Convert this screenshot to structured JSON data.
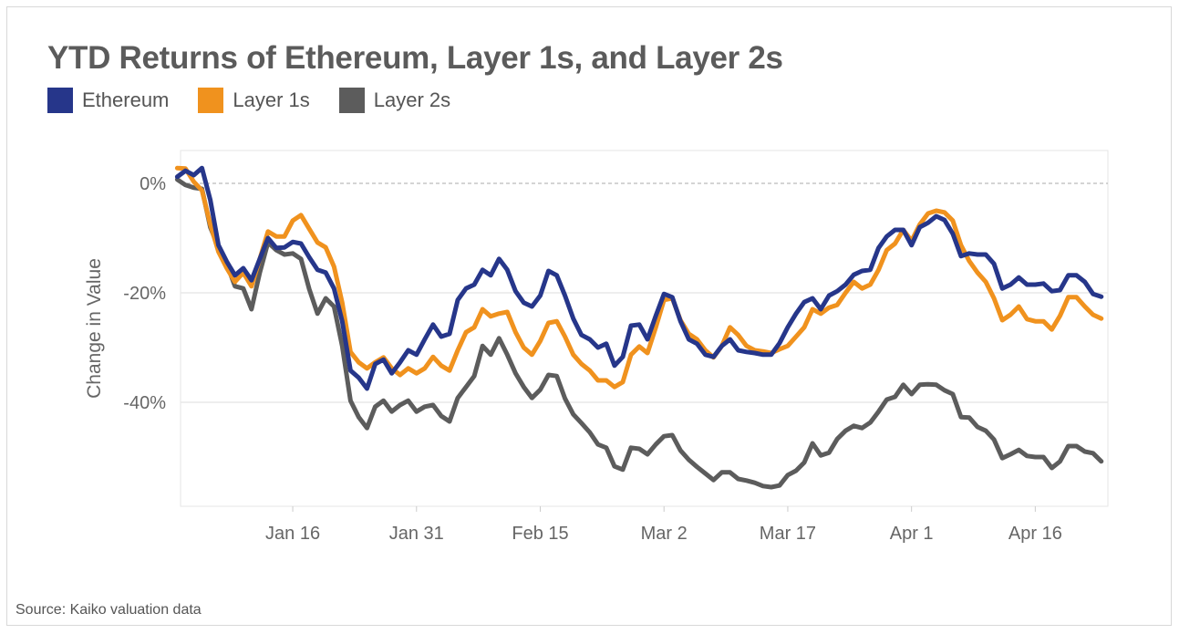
{
  "chart_data": {
    "type": "line",
    "title": "YTD Returns of Ethereum, Layer 1s, and Layer 2s",
    "ylabel": "Change in Value",
    "xlabel": "",
    "source": "Source: Kaiko valuation data",
    "ylim": [
      -59,
      6
    ],
    "xlim": [
      "Jan 1",
      "Apr 25"
    ],
    "grid": true,
    "legend_placement": "top-left",
    "y_ticks": [
      {
        "value": 0,
        "label": "0%"
      },
      {
        "value": -20,
        "label": "-20%"
      },
      {
        "value": -40,
        "label": "-40%"
      }
    ],
    "x_ticks": [
      "Jan 16",
      "Jan 31",
      "Feb 15",
      "Mar 2",
      "Mar 17",
      "Apr 1",
      "Apr 16"
    ],
    "x": [
      "Jan 2",
      "Jan 3",
      "Jan 4",
      "Jan 5",
      "Jan 6",
      "Jan 7",
      "Jan 8",
      "Jan 9",
      "Jan 10",
      "Jan 11",
      "Jan 12",
      "Jan 13",
      "Jan 14",
      "Jan 15",
      "Jan 16",
      "Jan 17",
      "Jan 18",
      "Jan 19",
      "Jan 20",
      "Jan 21",
      "Jan 22",
      "Jan 23",
      "Jan 24",
      "Jan 25",
      "Jan 26",
      "Jan 27",
      "Jan 28",
      "Jan 29",
      "Jan 30",
      "Jan 31",
      "Feb 1",
      "Feb 2",
      "Feb 3",
      "Feb 4",
      "Feb 5",
      "Feb 6",
      "Feb 7",
      "Feb 8",
      "Feb 9",
      "Feb 10",
      "Feb 11",
      "Feb 12",
      "Feb 13",
      "Feb 14",
      "Feb 15",
      "Feb 16",
      "Feb 17",
      "Feb 18",
      "Feb 19",
      "Feb 20",
      "Feb 21",
      "Feb 22",
      "Feb 23",
      "Feb 24",
      "Feb 25",
      "Feb 26",
      "Feb 27",
      "Feb 28",
      "Mar 1",
      "Mar 2",
      "Mar 3",
      "Mar 4",
      "Mar 5",
      "Mar 6",
      "Mar 7",
      "Mar 8",
      "Mar 9",
      "Mar 10",
      "Mar 11",
      "Mar 12",
      "Mar 13",
      "Mar 14",
      "Mar 15",
      "Mar 16",
      "Mar 17",
      "Mar 18",
      "Mar 19",
      "Mar 20",
      "Mar 21",
      "Mar 22",
      "Mar 23",
      "Mar 24",
      "Mar 25",
      "Mar 26",
      "Mar 27",
      "Mar 28",
      "Mar 29",
      "Mar 30",
      "Mar 31",
      "Apr 1",
      "Apr 2",
      "Apr 3",
      "Apr 4",
      "Apr 5",
      "Apr 6",
      "Apr 7",
      "Apr 8",
      "Apr 9",
      "Apr 10",
      "Apr 11",
      "Apr 12",
      "Apr 13",
      "Apr 14",
      "Apr 15",
      "Apr 16",
      "Apr 17",
      "Apr 18",
      "Apr 19",
      "Apr 20",
      "Apr 21",
      "Apr 22",
      "Apr 23",
      "Apr 24"
    ],
    "series": [
      {
        "name": "Ethereum",
        "color": "#26368a",
        "values": [
          1.2,
          2.3,
          1.5,
          2.8,
          -3.0,
          -11.3,
          -14.3,
          -16.8,
          -15.5,
          -17.7,
          -13.8,
          -10.0,
          -11.8,
          -11.7,
          -10.7,
          -11.0,
          -13.5,
          -15.8,
          -16.3,
          -19.2,
          -25.2,
          -34.2,
          -35.5,
          -37.5,
          -33.0,
          -32.2,
          -34.7,
          -32.7,
          -30.5,
          -31.3,
          -28.5,
          -25.8,
          -28.0,
          -27.5,
          -21.3,
          -19.2,
          -18.5,
          -15.8,
          -16.8,
          -13.8,
          -15.8,
          -19.7,
          -21.8,
          -22.5,
          -20.5,
          -16.0,
          -16.8,
          -20.5,
          -24.7,
          -27.7,
          -28.5,
          -30.0,
          -29.3,
          -33.3,
          -31.7,
          -26.0,
          -25.8,
          -28.5,
          -24.2,
          -20.2,
          -20.8,
          -25.2,
          -28.5,
          -29.3,
          -31.3,
          -31.7,
          -29.7,
          -28.5,
          -30.5,
          -30.8,
          -31.0,
          -31.3,
          -31.3,
          -29.2,
          -26.3,
          -23.8,
          -21.7,
          -21.0,
          -23.0,
          -20.5,
          -19.7,
          -18.5,
          -16.7,
          -16.0,
          -15.8,
          -11.8,
          -9.7,
          -8.5,
          -8.5,
          -11.3,
          -8.0,
          -7.2,
          -6.0,
          -6.7,
          -9.2,
          -13.3,
          -12.8,
          -13.0,
          -13.0,
          -14.7,
          -19.2,
          -18.5,
          -17.2,
          -18.5,
          -18.5,
          -18.3,
          -19.7,
          -19.5,
          -16.8,
          -16.8,
          -18.0,
          -20.2,
          -20.7
        ]
      },
      {
        "name": "Layer 1s",
        "color": "#f0921e",
        "values": [
          2.8,
          2.7,
          0.3,
          -1.3,
          -7.5,
          -12.5,
          -15.5,
          -18.0,
          -16.3,
          -18.8,
          -13.8,
          -8.8,
          -9.7,
          -9.7,
          -6.8,
          -5.8,
          -8.3,
          -10.8,
          -11.7,
          -15.2,
          -21.8,
          -30.8,
          -32.7,
          -33.8,
          -32.7,
          -31.8,
          -33.8,
          -35.0,
          -33.8,
          -34.7,
          -33.8,
          -31.7,
          -33.3,
          -34.2,
          -30.5,
          -27.2,
          -26.3,
          -23.0,
          -24.3,
          -23.8,
          -23.5,
          -27.2,
          -30.0,
          -31.3,
          -28.8,
          -25.5,
          -25.2,
          -28.0,
          -31.3,
          -33.0,
          -34.2,
          -36.0,
          -36.0,
          -37.2,
          -36.3,
          -31.3,
          -29.8,
          -31.0,
          -26.3,
          -21.3,
          -21.0,
          -25.0,
          -27.5,
          -28.5,
          -30.5,
          -31.8,
          -29.7,
          -26.3,
          -27.7,
          -29.7,
          -30.5,
          -30.7,
          -31.0,
          -30.3,
          -29.7,
          -28.0,
          -26.3,
          -23.0,
          -23.8,
          -22.7,
          -22.2,
          -20.0,
          -18.0,
          -19.2,
          -18.5,
          -15.8,
          -12.2,
          -11.0,
          -8.5,
          -10.5,
          -7.5,
          -5.5,
          -5.0,
          -5.3,
          -6.8,
          -11.3,
          -14.2,
          -16.3,
          -18.0,
          -21.0,
          -25.0,
          -24.0,
          -22.5,
          -24.8,
          -25.2,
          -25.2,
          -26.7,
          -24.2,
          -20.8,
          -20.8,
          -22.5,
          -24.0,
          -24.7
        ]
      },
      {
        "name": "Layer 2s",
        "color": "#5c5c5c",
        "values": [
          0.7,
          -0.3,
          -0.8,
          -1.0,
          -8.0,
          -11.7,
          -14.7,
          -18.8,
          -19.2,
          -23.0,
          -16.3,
          -10.8,
          -12.2,
          -13.0,
          -12.8,
          -13.8,
          -19.3,
          -23.8,
          -21.0,
          -22.5,
          -29.7,
          -39.7,
          -42.7,
          -44.7,
          -40.8,
          -39.7,
          -41.7,
          -40.5,
          -39.7,
          -41.7,
          -40.8,
          -40.5,
          -42.5,
          -43.5,
          -39.2,
          -37.2,
          -35.2,
          -29.7,
          -31.3,
          -28.3,
          -31.3,
          -34.7,
          -37.2,
          -39.2,
          -37.7,
          -35.0,
          -35.2,
          -39.3,
          -42.2,
          -43.8,
          -45.5,
          -47.7,
          -48.3,
          -51.7,
          -52.3,
          -48.3,
          -48.5,
          -49.5,
          -47.7,
          -46.2,
          -46.0,
          -48.8,
          -50.5,
          -51.8,
          -53.0,
          -54.2,
          -52.8,
          -52.8,
          -54.0,
          -54.3,
          -54.7,
          -55.3,
          -55.5,
          -55.2,
          -53.3,
          -52.5,
          -51.0,
          -47.5,
          -49.7,
          -49.2,
          -46.7,
          -45.2,
          -44.3,
          -44.7,
          -43.7,
          -41.7,
          -39.5,
          -39.0,
          -36.8,
          -38.5,
          -36.8,
          -36.7,
          -36.8,
          -37.8,
          -38.5,
          -42.7,
          -42.8,
          -44.5,
          -45.2,
          -46.8,
          -50.2,
          -49.5,
          -48.7,
          -49.8,
          -50.0,
          -50.0,
          -52.0,
          -50.8,
          -48.0,
          -48.0,
          -49.0,
          -49.3,
          -50.8
        ]
      }
    ]
  }
}
